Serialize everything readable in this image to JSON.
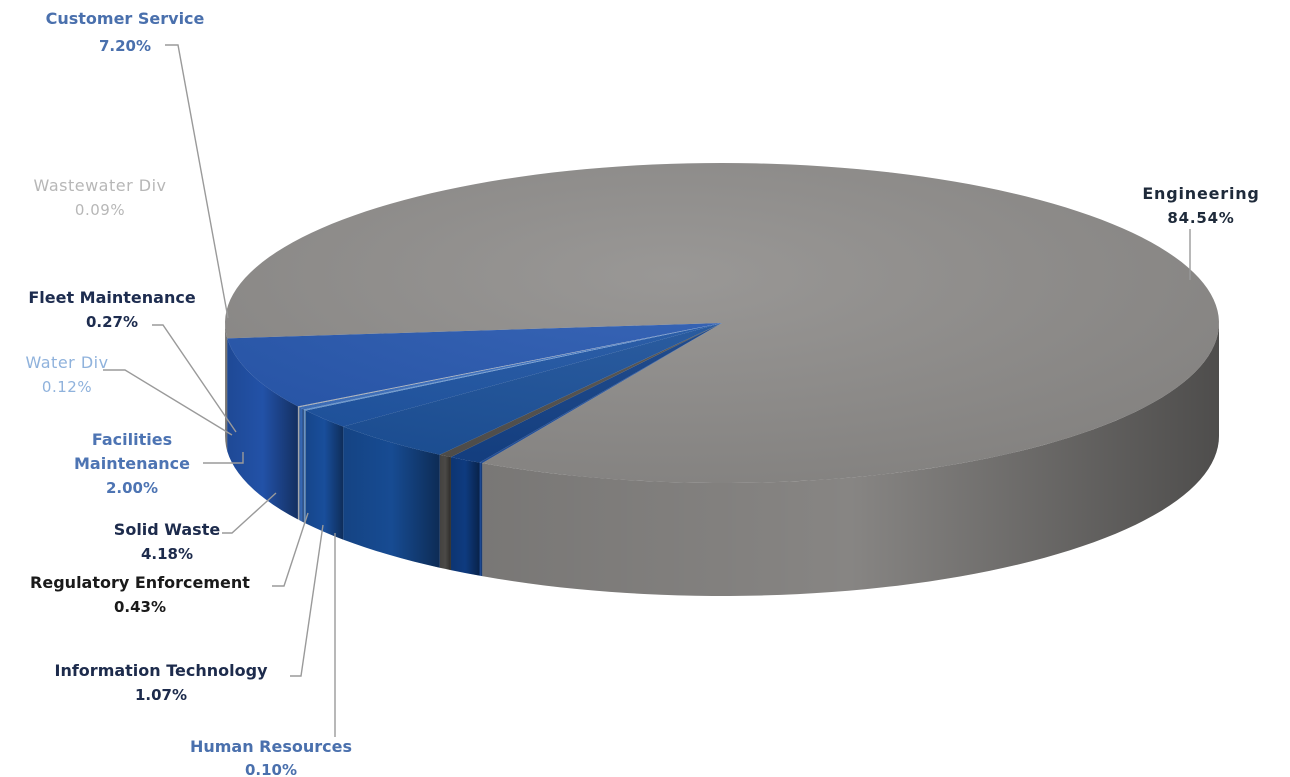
{
  "chart_data": {
    "type": "pie",
    "title": "",
    "slices": [
      {
        "label": "Engineering",
        "value": 84.54,
        "display": "84.54%",
        "color": "#8e8c8a"
      },
      {
        "label": "Human Resources",
        "value": 0.1,
        "display": "0.10%",
        "color": "#1f4f9e"
      },
      {
        "label": "Information Technology",
        "value": 1.07,
        "display": "1.07%",
        "color": "#0f3e86"
      },
      {
        "label": "Regulatory Enforcement",
        "value": 0.43,
        "display": "0.43%",
        "color": "#4f4d4a"
      },
      {
        "label": "Solid Waste",
        "value": 4.18,
        "display": "4.18%",
        "color": "#184f9a"
      },
      {
        "label": "Facilities Maintenance",
        "value": 2.0,
        "display": "2.00%",
        "color": "#1a52a3"
      },
      {
        "label": "Water Div",
        "value": 0.12,
        "display": "0.12%",
        "color": "#6f9fd8"
      },
      {
        "label": "Fleet Maintenance",
        "value": 0.27,
        "display": "0.27%",
        "color": "#3a6fc0"
      },
      {
        "label": "Wastewater Div",
        "value": 0.09,
        "display": "0.09%",
        "color": "#b9bcc0"
      },
      {
        "label": "Customer Service",
        "value": 7.2,
        "display": "7.20%",
        "color": "#2456b0"
      }
    ],
    "label_colors": {
      "Engineering": "#1e2a3a",
      "Customer Service": "#4a70ad",
      "Wastewater Div": "#b7b7b7",
      "Fleet Maintenance": "#1d2c4f",
      "Water Div": "#8fb2dc",
      "Facilities Maintenance": "#4d74b3",
      "Solid Waste": "#1d2b4c",
      "Regulatory Enforcement": "#1a1a1a",
      "Information Technology": "#1d2b4c",
      "Human Resources": "#4a70ad"
    }
  }
}
